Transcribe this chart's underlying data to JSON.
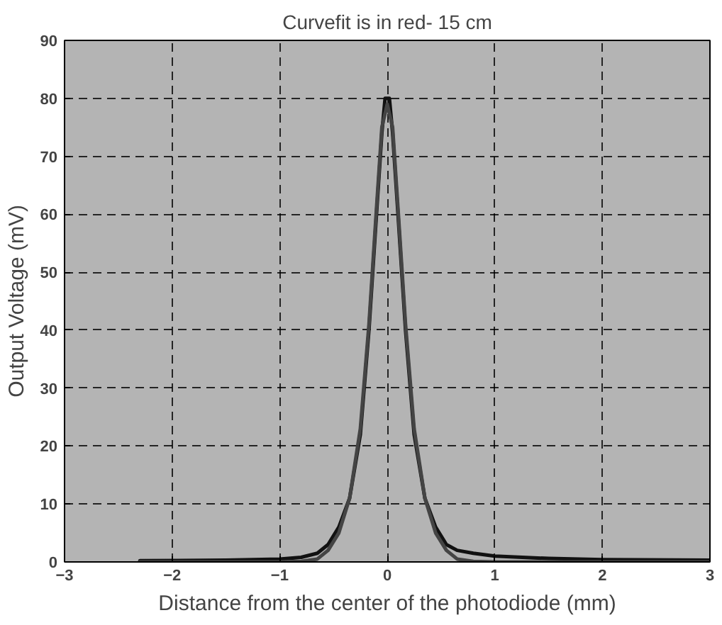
{
  "chart_data": {
    "type": "line",
    "title": "Curvefit is in red- 15 cm",
    "xlabel": "Distance from the center of the photodiode (mm)",
    "ylabel": "Output Voltage (mV)",
    "series": [
      {
        "color": "#111111",
        "x": [
          -2.3,
          -1.5,
          -1.0,
          -0.8,
          -0.65,
          -0.55,
          -0.45,
          -0.35,
          -0.25,
          -0.17,
          -0.1,
          -0.05,
          -0.02,
          0.02,
          0.05,
          0.1,
          0.17,
          0.25,
          0.35,
          0.45,
          0.55,
          0.65,
          0.8,
          1.0,
          1.5,
          2.0,
          3.0
        ],
        "values": [
          0.2,
          0.3,
          0.5,
          0.8,
          1.5,
          3,
          6,
          11,
          22,
          40,
          60,
          74,
          80,
          80,
          74,
          60,
          40,
          22,
          11,
          6,
          3,
          2,
          1.5,
          1,
          0.6,
          0.4,
          0.3
        ]
      },
      {
        "color": "#444444",
        "x": [
          -2.3,
          -1.5,
          -1.0,
          -0.8,
          -0.65,
          -0.55,
          -0.45,
          -0.35,
          -0.25,
          -0.17,
          -0.1,
          -0.05,
          0.0,
          0.05,
          0.1,
          0.17,
          0.25,
          0.35,
          0.45,
          0.55,
          0.65,
          0.8,
          1.0,
          1.5,
          2.0,
          3.0
        ],
        "values": [
          0,
          0,
          0,
          0.1,
          0.5,
          2,
          5,
          11,
          23,
          41,
          61,
          75,
          79,
          75,
          61,
          41,
          23,
          11,
          5,
          2,
          0.5,
          0.1,
          0,
          0,
          0,
          0
        ]
      }
    ],
    "xlim": [
      -3,
      3
    ],
    "ylim": [
      0,
      90
    ],
    "xticks": [
      -3,
      -2,
      -1,
      0,
      1,
      2,
      3
    ],
    "yticks": [
      0,
      10,
      20,
      30,
      40,
      50,
      60,
      70,
      80,
      90
    ],
    "grid": true,
    "line_style": "solid"
  }
}
